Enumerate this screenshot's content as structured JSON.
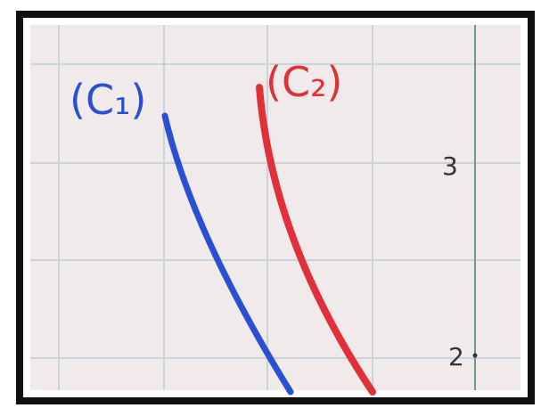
{
  "curves": [
    {
      "label": "(C₁)",
      "color": "#2a4fd0"
    },
    {
      "label": "(C₂)",
      "color": "#e0303a"
    }
  ],
  "axis_labels": [
    "3",
    "2"
  ]
}
